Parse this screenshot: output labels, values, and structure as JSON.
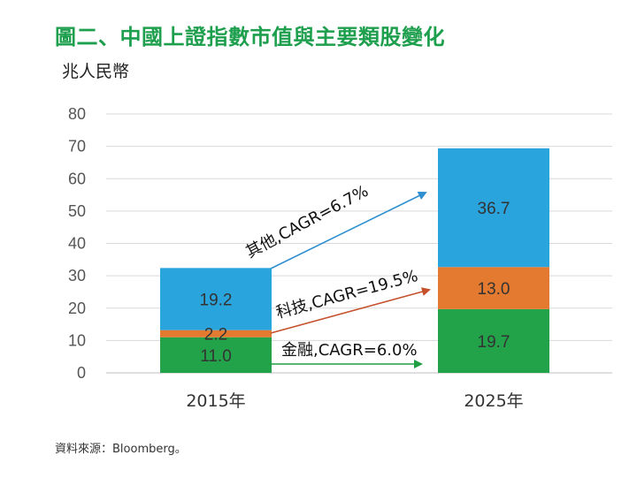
{
  "title": "圖二、中國上證指數市值與主要類股變化",
  "unit_label": "兆人民幣",
  "source_note": "資料來源：Bloomberg。",
  "colors": {
    "title": "#1e9f4e",
    "finance": "#22a34a",
    "tech": "#e47a2f",
    "others": "#2aa4dd",
    "gridline": "#d9d9d9"
  },
  "chart_data": {
    "type": "bar",
    "stacked": true,
    "categories": [
      "2015年",
      "2025年"
    ],
    "series": [
      {
        "name": "金融",
        "values": [
          11.0,
          19.7
        ],
        "labels": [
          "11.0",
          "19.7"
        ]
      },
      {
        "name": "科技",
        "values": [
          2.2,
          13.0
        ],
        "labels": [
          "2.2",
          "13.0"
        ]
      },
      {
        "name": "其他",
        "values": [
          19.2,
          36.7
        ],
        "labels": [
          "19.2",
          "36.7"
        ]
      }
    ],
    "ylim": [
      0,
      80
    ],
    "yticks": [
      0,
      10,
      20,
      30,
      40,
      50,
      60,
      70,
      80
    ],
    "ylabel": "兆人民幣",
    "grid": true,
    "annotations": [
      {
        "series": "其他",
        "text": "其他,CAGR=6.7%"
      },
      {
        "series": "科技",
        "text": "科技,CAGR=19.5%"
      },
      {
        "series": "金融",
        "text": "金融,CAGR=6.0%"
      }
    ]
  }
}
